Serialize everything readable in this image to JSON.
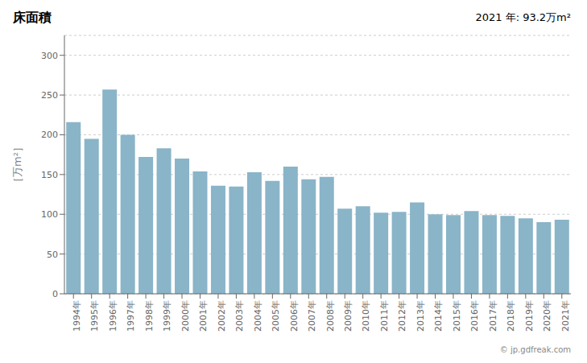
{
  "chart_data": {
    "type": "bar",
    "title": "床面積",
    "y_label": "［万m²］",
    "annotations": [
      "2021 年: 93.2万m²",
      "© jp.gdfreak.com"
    ],
    "categories": [
      "1994年",
      "1995年",
      "1996年",
      "1997年",
      "1998年",
      "1999年",
      "2000年",
      "2001年",
      "2002年",
      "2003年",
      "2004年",
      "2005年",
      "2006年",
      "2007年",
      "2008年",
      "2009年",
      "2010年",
      "2011年",
      "2012年",
      "2013年",
      "2014年",
      "2015年",
      "2016年",
      "2017年",
      "2018年",
      "2019年",
      "2020年",
      "2021年"
    ],
    "values": [
      216,
      195,
      257,
      200,
      172,
      183,
      170,
      154,
      136,
      135,
      153,
      142,
      160,
      144,
      147,
      107,
      110,
      102,
      103,
      115,
      100,
      99,
      104,
      99,
      98,
      95,
      90,
      93.2
    ],
    "color": "#8ab4c8",
    "ylim": [
      0,
      325
    ],
    "yticks": [
      0,
      50,
      100,
      150,
      200,
      250,
      300
    ],
    "grid": true
  }
}
